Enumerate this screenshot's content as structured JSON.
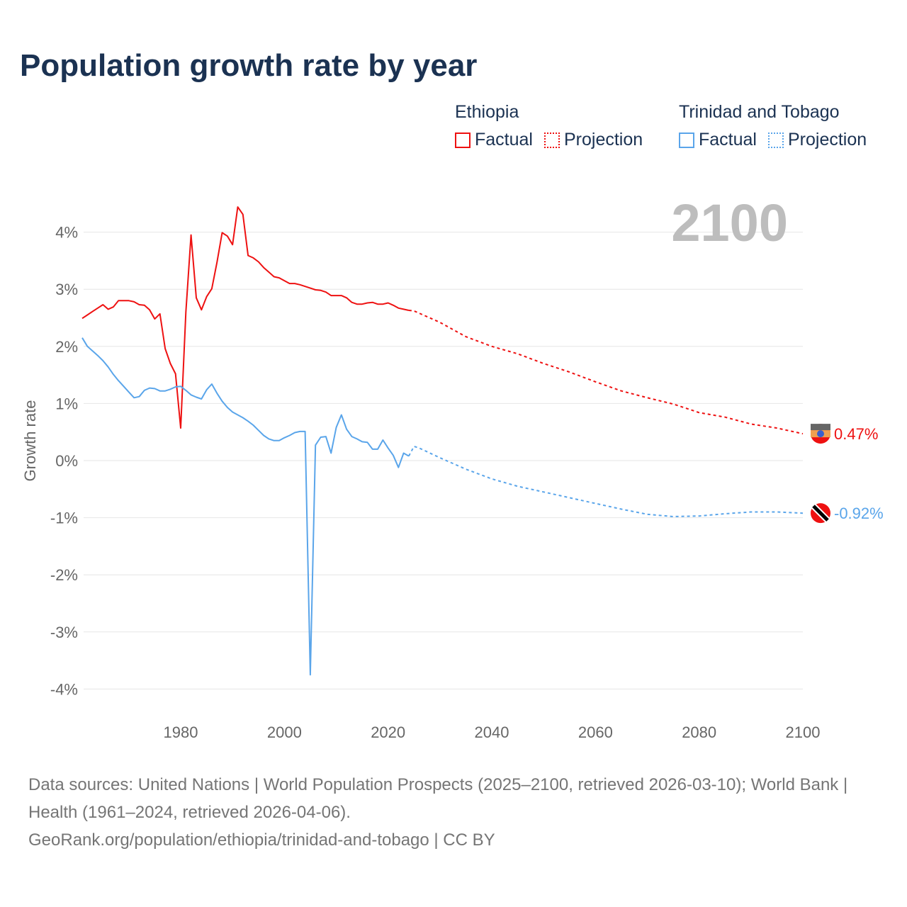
{
  "title": "Population growth rate by year",
  "current_year": "2100",
  "legend": [
    {
      "group": "Ethiopia",
      "factual": "Factual",
      "projection": "Projection",
      "color": "#ee1111"
    },
    {
      "group": "Trinidad and Tobago",
      "factual": "Factual",
      "projection": "Projection",
      "color": "#5aa5ea"
    }
  ],
  "footer": {
    "sources": "Data sources: United Nations | World Population Prospects (2025–2100, retrieved 2026-03-10); World Bank | Health (1961–2024, retrieved 2026-04-06).",
    "link": "GeoRank.org/population/ethiopia/trinidad-and-tobago | CC BY"
  },
  "chart_data": {
    "type": "line",
    "title": "Population growth rate by year",
    "xlabel": "",
    "ylabel": "Growth rate",
    "xlim": [
      1961,
      2100
    ],
    "ylim": [
      -4,
      4.5
    ],
    "x_ticks": [
      "1980",
      "2000",
      "2020",
      "2040",
      "2060",
      "2080",
      "2100"
    ],
    "y_ticks": [
      "4%",
      "3%",
      "2%",
      "1%",
      "0%",
      "-1%",
      "-2%",
      "-3%",
      "-4%"
    ],
    "grid": true,
    "end_labels": {
      "ethiopia": "0.47%",
      "trinidad": "-0.92%"
    },
    "series": [
      {
        "name": "Ethiopia Factual",
        "color": "#ee1111",
        "dashed": false,
        "start_year": 1961,
        "values": [
          2.49,
          2.55,
          2.61,
          2.67,
          2.73,
          2.65,
          2.69,
          2.8,
          2.8,
          2.8,
          2.78,
          2.73,
          2.72,
          2.64,
          2.48,
          2.57,
          1.96,
          1.7,
          1.52,
          0.57,
          2.6,
          3.95,
          2.85,
          2.64,
          2.87,
          3.01,
          3.47,
          3.99,
          3.93,
          3.78,
          4.44,
          4.31,
          3.59,
          3.55,
          3.48,
          3.38,
          3.3,
          3.22,
          3.2,
          3.15,
          3.1,
          3.1,
          3.08,
          3.05,
          3.02,
          2.99,
          2.98,
          2.95,
          2.89,
          2.89,
          2.89,
          2.85,
          2.77,
          2.74,
          2.74,
          2.76,
          2.77,
          2.74,
          2.74,
          2.76,
          2.72,
          2.67,
          2.65,
          2.63
        ]
      },
      {
        "name": "Ethiopia Projection",
        "color": "#ee1111",
        "dashed": true,
        "x": [
          2024,
          2025,
          2030,
          2035,
          2040,
          2045,
          2050,
          2055,
          2060,
          2065,
          2070,
          2075,
          2080,
          2085,
          2090,
          2095,
          2100
        ],
        "values": [
          2.63,
          2.62,
          2.42,
          2.17,
          2.0,
          1.87,
          1.7,
          1.55,
          1.38,
          1.22,
          1.1,
          0.99,
          0.84,
          0.76,
          0.64,
          0.57,
          0.47
        ]
      },
      {
        "name": "Trinidad and Tobago Factual",
        "color": "#5aa5ea",
        "dashed": false,
        "start_year": 1961,
        "values": [
          2.15,
          2.0,
          1.92,
          1.84,
          1.75,
          1.64,
          1.51,
          1.4,
          1.3,
          1.2,
          1.1,
          1.12,
          1.23,
          1.27,
          1.26,
          1.22,
          1.22,
          1.25,
          1.29,
          1.3,
          1.23,
          1.15,
          1.11,
          1.08,
          1.24,
          1.34,
          1.18,
          1.04,
          0.93,
          0.85,
          0.8,
          0.75,
          0.69,
          0.62,
          0.53,
          0.44,
          0.38,
          0.35,
          0.35,
          0.4,
          0.44,
          0.49,
          0.51,
          0.51,
          -3.75,
          0.27,
          0.41,
          0.42,
          0.13,
          0.58,
          0.8,
          0.55,
          0.42,
          0.38,
          0.33,
          0.32,
          0.2,
          0.2,
          0.36,
          0.22,
          0.09,
          -0.12,
          0.13,
          0.08
        ]
      },
      {
        "name": "Trinidad and Tobago Projection",
        "color": "#5aa5ea",
        "dashed": true,
        "x": [
          2024,
          2025,
          2026,
          2030,
          2035,
          2040,
          2045,
          2050,
          2055,
          2060,
          2065,
          2070,
          2075,
          2080,
          2085,
          2090,
          2095,
          2100
        ],
        "values": [
          0.08,
          0.25,
          0.22,
          0.05,
          -0.15,
          -0.32,
          -0.45,
          -0.55,
          -0.65,
          -0.75,
          -0.85,
          -0.94,
          -0.98,
          -0.97,
          -0.93,
          -0.9,
          -0.9,
          -0.92
        ]
      }
    ]
  }
}
